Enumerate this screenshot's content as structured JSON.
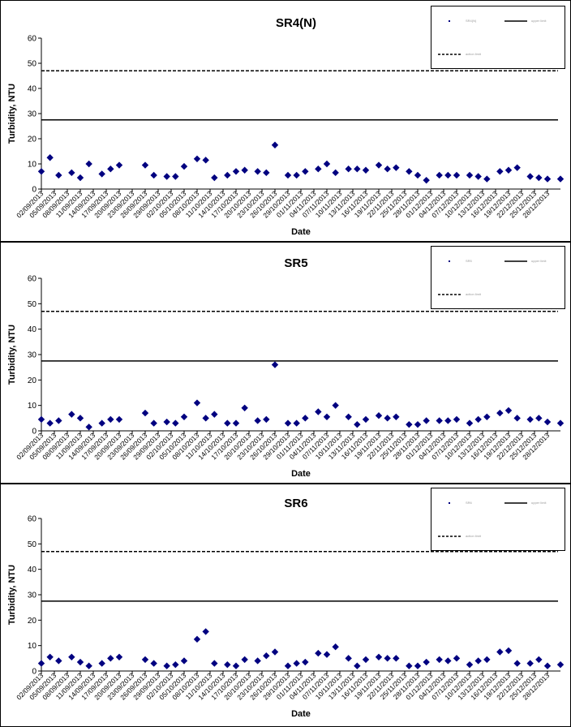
{
  "charts": [
    {
      "title": "SR4(N)",
      "xlabel": "Date",
      "ylabel": "Turbidity, NTU",
      "legend": {
        "series": "SR4(N)",
        "line1": "upper limit",
        "line2": "action limit"
      }
    },
    {
      "title": "SR5",
      "xlabel": "Date",
      "ylabel": "Turbidity, NTU",
      "legend": {
        "series": "SR5",
        "line1": "upper limit",
        "line2": "action limit"
      }
    },
    {
      "title": "SR6",
      "xlabel": "Date",
      "ylabel": "Turbidity, NTU",
      "legend": {
        "series": "SR6",
        "line1": "upper limit",
        "line2": "action limit"
      }
    }
  ],
  "chart_data": [
    {
      "type": "scatter",
      "title": "SR4(N)",
      "xlabel": "Date",
      "ylabel": "Turbidity, NTU",
      "ylim": [
        0,
        60
      ],
      "yticks": [
        0,
        10,
        20,
        30,
        40,
        50,
        60
      ],
      "xlim": [
        "02/09/2013",
        "31/12/2013"
      ],
      "xticks": [
        "02/09/2013",
        "05/09/2013",
        "08/09/2013",
        "11/09/2013",
        "14/09/2013",
        "17/09/2013",
        "20/09/2013",
        "23/09/2013",
        "26/09/2013",
        "29/09/2013",
        "02/10/2013",
        "05/10/2013",
        "08/10/2013",
        "11/10/2013",
        "14/10/2013",
        "17/10/2013",
        "20/10/2013",
        "23/10/2013",
        "26/10/2013",
        "29/10/2013",
        "01/11/2013",
        "04/11/2013",
        "07/11/2013",
        "10/11/2013",
        "13/11/2013",
        "16/11/2013",
        "19/11/2013",
        "22/11/2013",
        "25/11/2013",
        "28/11/2013",
        "01/12/2013",
        "04/12/2013",
        "07/12/2013",
        "10/12/2013",
        "13/12/2013",
        "16/12/2013",
        "19/12/2013",
        "22/12/2013",
        "25/12/2013",
        "28/12/2013"
      ],
      "hlines": [
        {
          "y": 27.5,
          "style": "solid"
        },
        {
          "y": 47,
          "style": "dashed"
        }
      ],
      "color": "#000080",
      "points": [
        [
          "02/09/2013",
          7
        ],
        [
          "04/09/2013",
          12.5
        ],
        [
          "06/09/2013",
          5.5
        ],
        [
          "09/09/2013",
          6.5
        ],
        [
          "11/09/2013",
          4.5
        ],
        [
          "13/09/2013",
          10
        ],
        [
          "16/09/2013",
          6
        ],
        [
          "18/09/2013",
          8
        ],
        [
          "20/09/2013",
          9.5
        ],
        [
          "26/09/2013",
          9.5
        ],
        [
          "28/09/2013",
          5.5
        ],
        [
          "01/10/2013",
          5
        ],
        [
          "03/10/2013",
          5
        ],
        [
          "05/10/2013",
          9
        ],
        [
          "08/10/2013",
          12
        ],
        [
          "10/10/2013",
          11.5
        ],
        [
          "12/10/2013",
          4.5
        ],
        [
          "15/10/2013",
          5.5
        ],
        [
          "17/10/2013",
          7
        ],
        [
          "19/10/2013",
          7.5
        ],
        [
          "22/10/2013",
          7
        ],
        [
          "24/10/2013",
          6.5
        ],
        [
          "26/10/2013",
          17.5
        ],
        [
          "29/10/2013",
          5.5
        ],
        [
          "31/10/2013",
          5.5
        ],
        [
          "02/11/2013",
          7
        ],
        [
          "05/11/2013",
          8
        ],
        [
          "07/11/2013",
          10
        ],
        [
          "09/11/2013",
          6.5
        ],
        [
          "12/11/2013",
          8
        ],
        [
          "14/11/2013",
          8
        ],
        [
          "16/11/2013",
          7.5
        ],
        [
          "19/11/2013",
          9.5
        ],
        [
          "21/11/2013",
          8
        ],
        [
          "23/11/2013",
          8.5
        ],
        [
          "26/11/2013",
          7
        ],
        [
          "28/11/2013",
          5.5
        ],
        [
          "30/11/2013",
          3.5
        ],
        [
          "03/12/2013",
          5.5
        ],
        [
          "05/12/2013",
          5.5
        ],
        [
          "07/12/2013",
          5.5
        ],
        [
          "10/12/2013",
          5.5
        ],
        [
          "12/12/2013",
          5
        ],
        [
          "14/12/2013",
          4
        ],
        [
          "17/12/2013",
          7
        ],
        [
          "19/12/2013",
          7.5
        ],
        [
          "21/12/2013",
          8.5
        ],
        [
          "24/12/2013",
          5
        ],
        [
          "26/12/2013",
          4.5
        ],
        [
          "28/12/2013",
          4
        ],
        [
          "31/12/2013",
          4
        ]
      ]
    },
    {
      "type": "scatter",
      "title": "SR5",
      "xlabel": "Date",
      "ylabel": "Turbidity, NTU",
      "ylim": [
        0,
        60
      ],
      "yticks": [
        0,
        10,
        20,
        30,
        40,
        50,
        60
      ],
      "xlim": [
        "02/09/2013",
        "31/12/2013"
      ],
      "xticks": [
        "02/09/2013",
        "05/09/2013",
        "08/09/2013",
        "11/09/2013",
        "14/09/2013",
        "17/09/2013",
        "20/09/2013",
        "23/09/2013",
        "26/09/2013",
        "29/09/2013",
        "02/10/2013",
        "05/10/2013",
        "08/10/2013",
        "11/10/2013",
        "14/10/2013",
        "17/10/2013",
        "20/10/2013",
        "23/10/2013",
        "26/10/2013",
        "29/10/2013",
        "01/11/2013",
        "04/11/2013",
        "07/11/2013",
        "10/11/2013",
        "13/11/2013",
        "16/11/2013",
        "19/11/2013",
        "22/11/2013",
        "25/11/2013",
        "28/11/2013",
        "01/12/2013",
        "04/12/2013",
        "07/12/2013",
        "10/12/2013",
        "13/12/2013",
        "16/12/2013",
        "19/12/2013",
        "22/12/2013",
        "25/12/2013",
        "28/12/2013"
      ],
      "hlines": [
        {
          "y": 27.5,
          "style": "solid"
        },
        {
          "y": 47,
          "style": "dashed"
        }
      ],
      "color": "#000080",
      "points": [
        [
          "02/09/2013",
          4.5
        ],
        [
          "04/09/2013",
          3
        ],
        [
          "06/09/2013",
          4
        ],
        [
          "09/09/2013",
          6.5
        ],
        [
          "11/09/2013",
          5
        ],
        [
          "13/09/2013",
          1.5
        ],
        [
          "16/09/2013",
          3
        ],
        [
          "18/09/2013",
          4.5
        ],
        [
          "20/09/2013",
          4.5
        ],
        [
          "26/09/2013",
          7
        ],
        [
          "28/09/2013",
          3
        ],
        [
          "01/10/2013",
          3.5
        ],
        [
          "03/10/2013",
          3
        ],
        [
          "05/10/2013",
          5.5
        ],
        [
          "08/10/2013",
          11
        ],
        [
          "10/10/2013",
          5
        ],
        [
          "12/10/2013",
          6.5
        ],
        [
          "15/10/2013",
          3
        ],
        [
          "17/10/2013",
          3
        ],
        [
          "19/10/2013",
          9
        ],
        [
          "22/10/2013",
          4
        ],
        [
          "24/10/2013",
          4.5
        ],
        [
          "26/10/2013",
          26
        ],
        [
          "29/10/2013",
          3
        ],
        [
          "31/10/2013",
          3
        ],
        [
          "02/11/2013",
          5
        ],
        [
          "05/11/2013",
          7.5
        ],
        [
          "07/11/2013",
          5.5
        ],
        [
          "09/11/2013",
          10
        ],
        [
          "12/11/2013",
          5.5
        ],
        [
          "14/11/2013",
          2.5
        ],
        [
          "16/11/2013",
          4.5
        ],
        [
          "19/11/2013",
          6
        ],
        [
          "21/11/2013",
          5
        ],
        [
          "23/11/2013",
          5.5
        ],
        [
          "26/11/2013",
          2.5
        ],
        [
          "28/11/2013",
          2.5
        ],
        [
          "30/11/2013",
          4
        ],
        [
          "03/12/2013",
          4
        ],
        [
          "05/12/2013",
          4
        ],
        [
          "07/12/2013",
          4.5
        ],
        [
          "10/12/2013",
          3
        ],
        [
          "12/12/2013",
          4.5
        ],
        [
          "14/12/2013",
          5.5
        ],
        [
          "17/12/2013",
          7
        ],
        [
          "19/12/2013",
          8
        ],
        [
          "21/12/2013",
          5
        ],
        [
          "24/12/2013",
          4.5
        ],
        [
          "26/12/2013",
          5
        ],
        [
          "28/12/2013",
          3.5
        ],
        [
          "31/12/2013",
          3
        ]
      ]
    },
    {
      "type": "scatter",
      "title": "SR6",
      "xlabel": "Date",
      "ylabel": "Turbidity, NTU",
      "ylim": [
        0,
        60
      ],
      "yticks": [
        0,
        10,
        20,
        30,
        40,
        50,
        60
      ],
      "xlim": [
        "02/09/2013",
        "31/12/2013"
      ],
      "xticks": [
        "02/09/2013",
        "05/09/2013",
        "08/09/2013",
        "11/09/2013",
        "14/09/2013",
        "17/09/2013",
        "20/09/2013",
        "23/09/2013",
        "26/09/2013",
        "29/09/2013",
        "02/10/2013",
        "05/10/2013",
        "08/10/2013",
        "11/10/2013",
        "14/10/2013",
        "17/10/2013",
        "20/10/2013",
        "23/10/2013",
        "26/10/2013",
        "29/10/2013",
        "01/11/2013",
        "04/11/2013",
        "07/11/2013",
        "10/11/2013",
        "13/11/2013",
        "16/11/2013",
        "19/11/2013",
        "22/11/2013",
        "25/11/2013",
        "28/11/2013",
        "01/12/2013",
        "04/12/2013",
        "07/12/2013",
        "10/12/2013",
        "13/12/2013",
        "16/12/2013",
        "19/12/2013",
        "22/12/2013",
        "25/12/2013",
        "28/12/2013"
      ],
      "hlines": [
        {
          "y": 27.5,
          "style": "solid"
        },
        {
          "y": 47,
          "style": "dashed"
        }
      ],
      "color": "#000080",
      "points": [
        [
          "02/09/2013",
          3
        ],
        [
          "04/09/2013",
          5.5
        ],
        [
          "06/09/2013",
          4
        ],
        [
          "09/09/2013",
          5.5
        ],
        [
          "11/09/2013",
          3.5
        ],
        [
          "13/09/2013",
          2
        ],
        [
          "16/09/2013",
          3
        ],
        [
          "18/09/2013",
          5
        ],
        [
          "20/09/2013",
          5.5
        ],
        [
          "26/09/2013",
          4.5
        ],
        [
          "28/09/2013",
          3
        ],
        [
          "01/10/2013",
          2
        ],
        [
          "03/10/2013",
          2.5
        ],
        [
          "05/10/2013",
          4
        ],
        [
          "08/10/2013",
          12.5
        ],
        [
          "10/10/2013",
          15.5
        ],
        [
          "12/10/2013",
          3
        ],
        [
          "15/10/2013",
          2.5
        ],
        [
          "17/10/2013",
          2
        ],
        [
          "19/10/2013",
          4.5
        ],
        [
          "22/10/2013",
          4
        ],
        [
          "24/10/2013",
          6
        ],
        [
          "26/10/2013",
          7.5
        ],
        [
          "29/10/2013",
          2
        ],
        [
          "31/10/2013",
          3
        ],
        [
          "02/11/2013",
          3.5
        ],
        [
          "05/11/2013",
          7
        ],
        [
          "07/11/2013",
          6.5
        ],
        [
          "09/11/2013",
          9.5
        ],
        [
          "12/11/2013",
          5
        ],
        [
          "14/11/2013",
          2
        ],
        [
          "16/11/2013",
          4.5
        ],
        [
          "19/11/2013",
          5.5
        ],
        [
          "21/11/2013",
          5
        ],
        [
          "23/11/2013",
          5
        ],
        [
          "26/11/2013",
          2
        ],
        [
          "28/11/2013",
          2
        ],
        [
          "30/11/2013",
          3.5
        ],
        [
          "03/12/2013",
          4.5
        ],
        [
          "05/12/2013",
          4
        ],
        [
          "07/12/2013",
          5
        ],
        [
          "10/12/2013",
          2.5
        ],
        [
          "12/12/2013",
          4
        ],
        [
          "14/12/2013",
          4.5
        ],
        [
          "17/12/2013",
          7.5
        ],
        [
          "19/12/2013",
          8
        ],
        [
          "21/12/2013",
          3
        ],
        [
          "24/12/2013",
          3
        ],
        [
          "26/12/2013",
          4.5
        ],
        [
          "28/12/2013",
          2
        ],
        [
          "31/12/2013",
          2.5
        ]
      ]
    }
  ]
}
